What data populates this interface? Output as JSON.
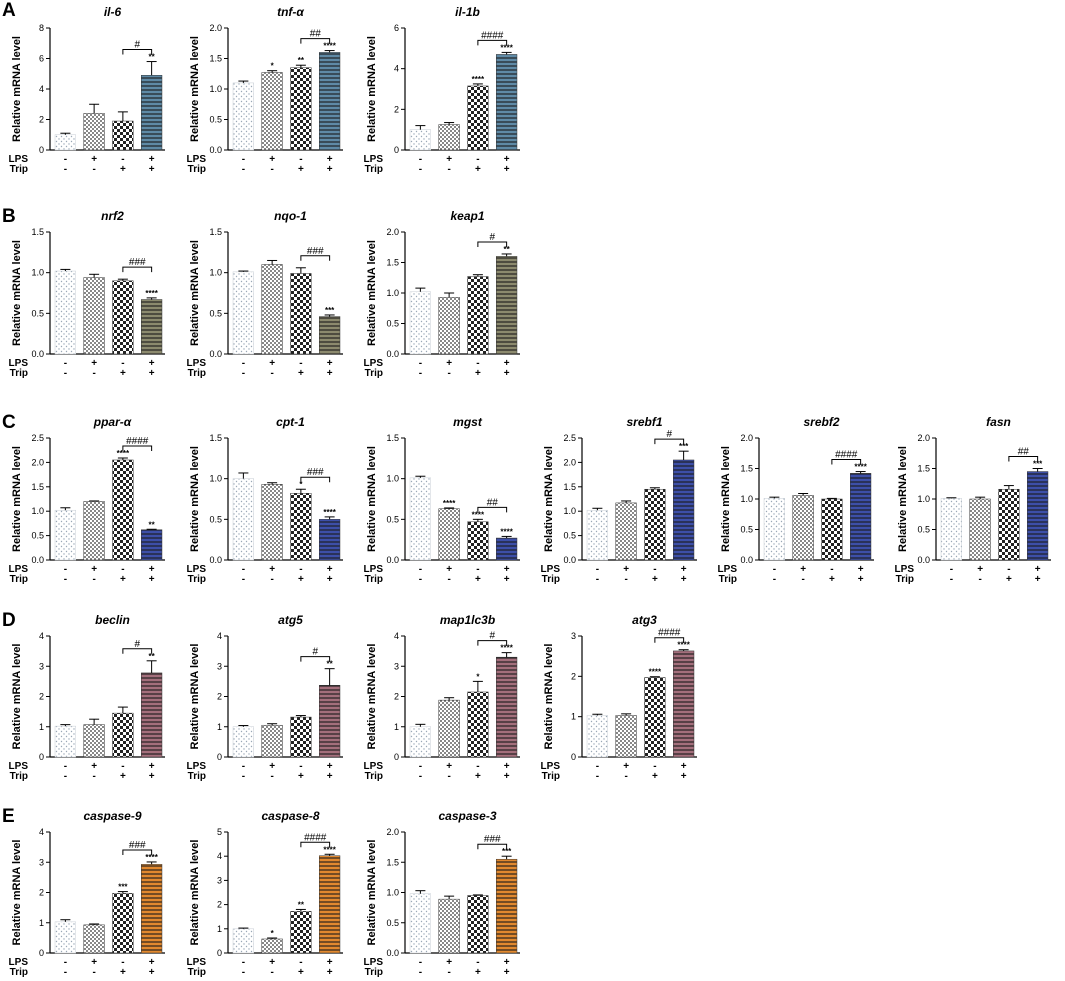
{
  "figure": {
    "panel_letters": [
      "A",
      "B",
      "C",
      "D",
      "E"
    ],
    "y_axis_label": "Relative mRNA level",
    "row_labels": [
      "LPS",
      "Trip"
    ],
    "lps_signs": [
      "-",
      "+",
      "-",
      "+"
    ],
    "trip_signs": [
      "-",
      "-",
      "+",
      "+"
    ]
  },
  "colors": {
    "A": "#5f8aa6",
    "B": "#8c8a6e",
    "C": "#3d4fa8",
    "D": "#a46f7c",
    "E": "#e2892f",
    "dot_light": "#9aa8b6",
    "axis": "#000000"
  },
  "chart_data": [
    {
      "panel": "A",
      "title": "il-6",
      "type": "bar",
      "ylim": [
        0,
        8
      ],
      "ticks": [
        0,
        2,
        4,
        6,
        8
      ],
      "tick_labels": [
        "0",
        "2",
        "4",
        "6",
        "8"
      ],
      "values": [
        1.0,
        2.4,
        1.9,
        4.9
      ],
      "errors": [
        0.1,
        0.6,
        0.6,
        0.9
      ],
      "stars": [
        "",
        "",
        "",
        "**"
      ],
      "hash": "#"
    },
    {
      "panel": "A",
      "title": "tnf-α",
      "type": "bar",
      "ylim": [
        0,
        2.0
      ],
      "ticks": [
        0,
        0.5,
        1.0,
        1.5,
        2.0
      ],
      "tick_labels": [
        "0.0",
        "0.5",
        "1.0",
        "1.5",
        "2.0"
      ],
      "values": [
        1.1,
        1.27,
        1.35,
        1.6
      ],
      "errors": [
        0.03,
        0.03,
        0.04,
        0.03
      ],
      "stars": [
        "",
        "*",
        "**",
        "****"
      ],
      "hash": "##"
    },
    {
      "panel": "A",
      "title": "il-1b",
      "type": "bar",
      "ylim": [
        0,
        6
      ],
      "ticks": [
        0,
        2,
        4,
        6
      ],
      "tick_labels": [
        "0",
        "2",
        "4",
        "6"
      ],
      "values": [
        1.0,
        1.25,
        3.15,
        4.7
      ],
      "errors": [
        0.2,
        0.1,
        0.1,
        0.1
      ],
      "stars": [
        "",
        "",
        "****",
        "****"
      ],
      "hash": "####"
    },
    {
      "panel": "B",
      "title": "nrf2",
      "type": "bar",
      "ylim": [
        0,
        1.5
      ],
      "ticks": [
        0,
        0.5,
        1.0,
        1.5
      ],
      "tick_labels": [
        "0.0",
        "0.5",
        "1.0",
        "1.5"
      ],
      "values": [
        1.02,
        0.94,
        0.9,
        0.67
      ],
      "errors": [
        0.02,
        0.04,
        0.02,
        0.02
      ],
      "stars": [
        "",
        "",
        "",
        "****"
      ],
      "hash": "###"
    },
    {
      "panel": "B",
      "title": "nqo-1",
      "type": "bar",
      "ylim": [
        0,
        1.5
      ],
      "ticks": [
        0,
        0.5,
        1.0,
        1.5
      ],
      "tick_labels": [
        "0.0",
        "0.5",
        "1.0",
        "1.5"
      ],
      "values": [
        1.01,
        1.1,
        0.99,
        0.46
      ],
      "errors": [
        0.01,
        0.05,
        0.07,
        0.02
      ],
      "stars": [
        "",
        "",
        "",
        "***"
      ],
      "hash": "###"
    },
    {
      "panel": "B",
      "title": "keap1",
      "type": "bar",
      "ylim": [
        0,
        2.0
      ],
      "ticks": [
        0,
        0.5,
        1.0,
        1.5,
        2.0
      ],
      "tick_labels": [
        "0.0",
        "0.5",
        "1.0",
        "1.5",
        "2.0"
      ],
      "values": [
        1.02,
        0.93,
        1.27,
        1.6
      ],
      "errors": [
        0.06,
        0.07,
        0.03,
        0.04
      ],
      "stars": [
        "",
        "",
        "",
        "**"
      ],
      "hash": "#"
    },
    {
      "panel": "C",
      "title": "ppar-α",
      "type": "bar",
      "ylim": [
        0,
        2.5
      ],
      "ticks": [
        0,
        0.5,
        1.0,
        1.5,
        2.0,
        2.5
      ],
      "tick_labels": [
        "0.0",
        "0.5",
        "1.0",
        "1.5",
        "2.0",
        "2.5"
      ],
      "values": [
        1.02,
        1.2,
        2.05,
        0.62
      ],
      "errors": [
        0.05,
        0.01,
        0.04,
        0.01
      ],
      "stars": [
        "",
        "",
        "****",
        "**"
      ],
      "hash": "####"
    },
    {
      "panel": "C",
      "title": "cpt-1",
      "type": "bar",
      "ylim": [
        0,
        1.5
      ],
      "ticks": [
        0,
        0.5,
        1.0,
        1.5
      ],
      "tick_labels": [
        "0.0",
        "0.5",
        "1.0",
        "1.5"
      ],
      "values": [
        1.0,
        0.93,
        0.82,
        0.5
      ],
      "errors": [
        0.07,
        0.02,
        0.05,
        0.03
      ],
      "stars": [
        "",
        "",
        "*",
        "****"
      ],
      "hash": "###"
    },
    {
      "panel": "C",
      "title": "mgst",
      "type": "bar",
      "ylim": [
        0,
        1.5
      ],
      "ticks": [
        0,
        0.5,
        1.0,
        1.5
      ],
      "tick_labels": [
        "0.0",
        "0.5",
        "1.0",
        "1.5"
      ],
      "values": [
        1.01,
        0.63,
        0.47,
        0.27
      ],
      "errors": [
        0.02,
        0.01,
        0.03,
        0.02
      ],
      "stars": [
        "",
        "****",
        "****",
        "****"
      ],
      "hash": "##"
    },
    {
      "panel": "C",
      "title": "srebf1",
      "type": "bar",
      "ylim": [
        0,
        2.5
      ],
      "ticks": [
        0,
        0.5,
        1.0,
        1.5,
        2.0,
        2.5
      ],
      "tick_labels": [
        "0.0",
        "0.5",
        "1.0",
        "1.5",
        "2.0",
        "2.5"
      ],
      "values": [
        1.02,
        1.17,
        1.45,
        2.05
      ],
      "errors": [
        0.04,
        0.04,
        0.03,
        0.18
      ],
      "stars": [
        "",
        "",
        "",
        "***"
      ],
      "hash": "#"
    },
    {
      "panel": "C",
      "title": "srebf2",
      "type": "bar",
      "ylim": [
        0,
        2.0
      ],
      "ticks": [
        0,
        0.5,
        1.0,
        1.5,
        2.0
      ],
      "tick_labels": [
        "0.0",
        "0.5",
        "1.0",
        "1.5",
        "2.0"
      ],
      "values": [
        1.01,
        1.06,
        1.0,
        1.42
      ],
      "errors": [
        0.02,
        0.03,
        0.01,
        0.03
      ],
      "stars": [
        "",
        "",
        "",
        "****"
      ],
      "hash": "####"
    },
    {
      "panel": "C",
      "title": "fasn",
      "type": "bar",
      "ylim": [
        0,
        2.0
      ],
      "ticks": [
        0,
        0.5,
        1.0,
        1.5,
        2.0
      ],
      "tick_labels": [
        "0.0",
        "0.5",
        "1.0",
        "1.5",
        "2.0"
      ],
      "values": [
        1.01,
        1.0,
        1.16,
        1.45
      ],
      "errors": [
        0.01,
        0.03,
        0.06,
        0.05
      ],
      "stars": [
        "",
        "",
        "",
        "***"
      ],
      "hash": "##"
    },
    {
      "panel": "D",
      "title": "beclin",
      "type": "bar",
      "ylim": [
        0,
        4
      ],
      "ticks": [
        0,
        1,
        2,
        3,
        4
      ],
      "tick_labels": [
        "0",
        "1",
        "2",
        "3",
        "4"
      ],
      "values": [
        1.02,
        1.07,
        1.45,
        2.78
      ],
      "errors": [
        0.05,
        0.18,
        0.2,
        0.4
      ],
      "stars": [
        "",
        "",
        "",
        "**"
      ],
      "hash": "#"
    },
    {
      "panel": "D",
      "title": "atg5",
      "type": "bar",
      "ylim": [
        0,
        4
      ],
      "ticks": [
        0,
        1,
        2,
        3,
        4
      ],
      "tick_labels": [
        "0",
        "1",
        "2",
        "3",
        "4"
      ],
      "values": [
        1.0,
        1.05,
        1.32,
        2.37
      ],
      "errors": [
        0.04,
        0.05,
        0.05,
        0.55
      ],
      "stars": [
        "",
        "",
        "",
        "**"
      ],
      "hash": "#"
    },
    {
      "panel": "D",
      "title": "map1lc3b",
      "type": "bar",
      "ylim": [
        0,
        4
      ],
      "ticks": [
        0,
        1,
        2,
        3,
        4
      ],
      "tick_labels": [
        "0",
        "1",
        "2",
        "3",
        "4"
      ],
      "values": [
        1.0,
        1.88,
        2.15,
        3.3
      ],
      "errors": [
        0.08,
        0.08,
        0.35,
        0.15
      ],
      "stars": [
        "",
        "",
        "*",
        "****"
      ],
      "hash": "#"
    },
    {
      "panel": "D",
      "title": "atg3",
      "type": "bar",
      "ylim": [
        0,
        3
      ],
      "ticks": [
        0,
        1,
        2,
        3
      ],
      "tick_labels": [
        "0",
        "1",
        "2",
        "3"
      ],
      "values": [
        1.03,
        1.03,
        1.97,
        2.63
      ],
      "errors": [
        0.03,
        0.04,
        0.02,
        0.03
      ],
      "stars": [
        "",
        "",
        "****",
        "****"
      ],
      "hash": "####"
    },
    {
      "panel": "E",
      "title": "caspase-9",
      "type": "bar",
      "ylim": [
        0,
        4
      ],
      "ticks": [
        0,
        1,
        2,
        3,
        4
      ],
      "tick_labels": [
        "0",
        "1",
        "2",
        "3",
        "4"
      ],
      "values": [
        1.03,
        0.93,
        1.97,
        2.93
      ],
      "errors": [
        0.07,
        0.03,
        0.06,
        0.08
      ],
      "stars": [
        "",
        "",
        "***",
        "****"
      ],
      "hash": "###"
    },
    {
      "panel": "E",
      "title": "caspase-8",
      "type": "bar",
      "ylim": [
        0,
        5
      ],
      "ticks": [
        0,
        1,
        2,
        3,
        4,
        5
      ],
      "tick_labels": [
        "0",
        "1",
        "2",
        "3",
        "4",
        "5"
      ],
      "values": [
        1.0,
        0.58,
        1.72,
        4.02
      ],
      "errors": [
        0.03,
        0.04,
        0.08,
        0.06
      ],
      "stars": [
        "",
        "*",
        "**",
        "****"
      ],
      "hash": "####"
    },
    {
      "panel": "E",
      "title": "caspase-3",
      "type": "bar",
      "ylim": [
        0,
        2.0
      ],
      "ticks": [
        0,
        0.5,
        1.0,
        1.5,
        2.0
      ],
      "tick_labels": [
        "0.0",
        "0.5",
        "1.0",
        "1.5",
        "2.0"
      ],
      "values": [
        0.98,
        0.89,
        0.95,
        1.55
      ],
      "errors": [
        0.05,
        0.05,
        0.01,
        0.05
      ],
      "stars": [
        "",
        "",
        "",
        "***"
      ],
      "hash": "###"
    }
  ]
}
